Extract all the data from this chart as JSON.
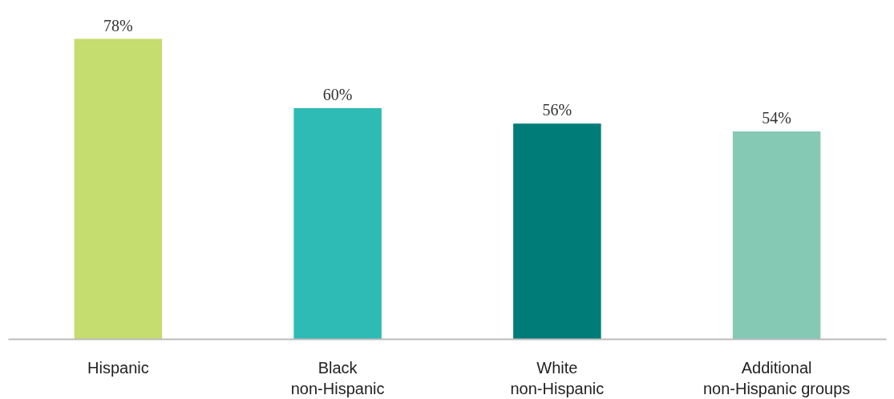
{
  "chart_data": {
    "type": "bar",
    "categories": [
      "Hispanic",
      "Black\nnon-Hispanic",
      "White\nnon-Hispanic",
      "Additional\nnon-Hispanic groups"
    ],
    "values": [
      78,
      60,
      56,
      54
    ],
    "colors": [
      "#c5dc6e",
      "#2ebab5",
      "#007c78",
      "#85c9b5"
    ],
    "value_labels": [
      "78%",
      "60%",
      "56%",
      "54%"
    ],
    "grid": false
  }
}
